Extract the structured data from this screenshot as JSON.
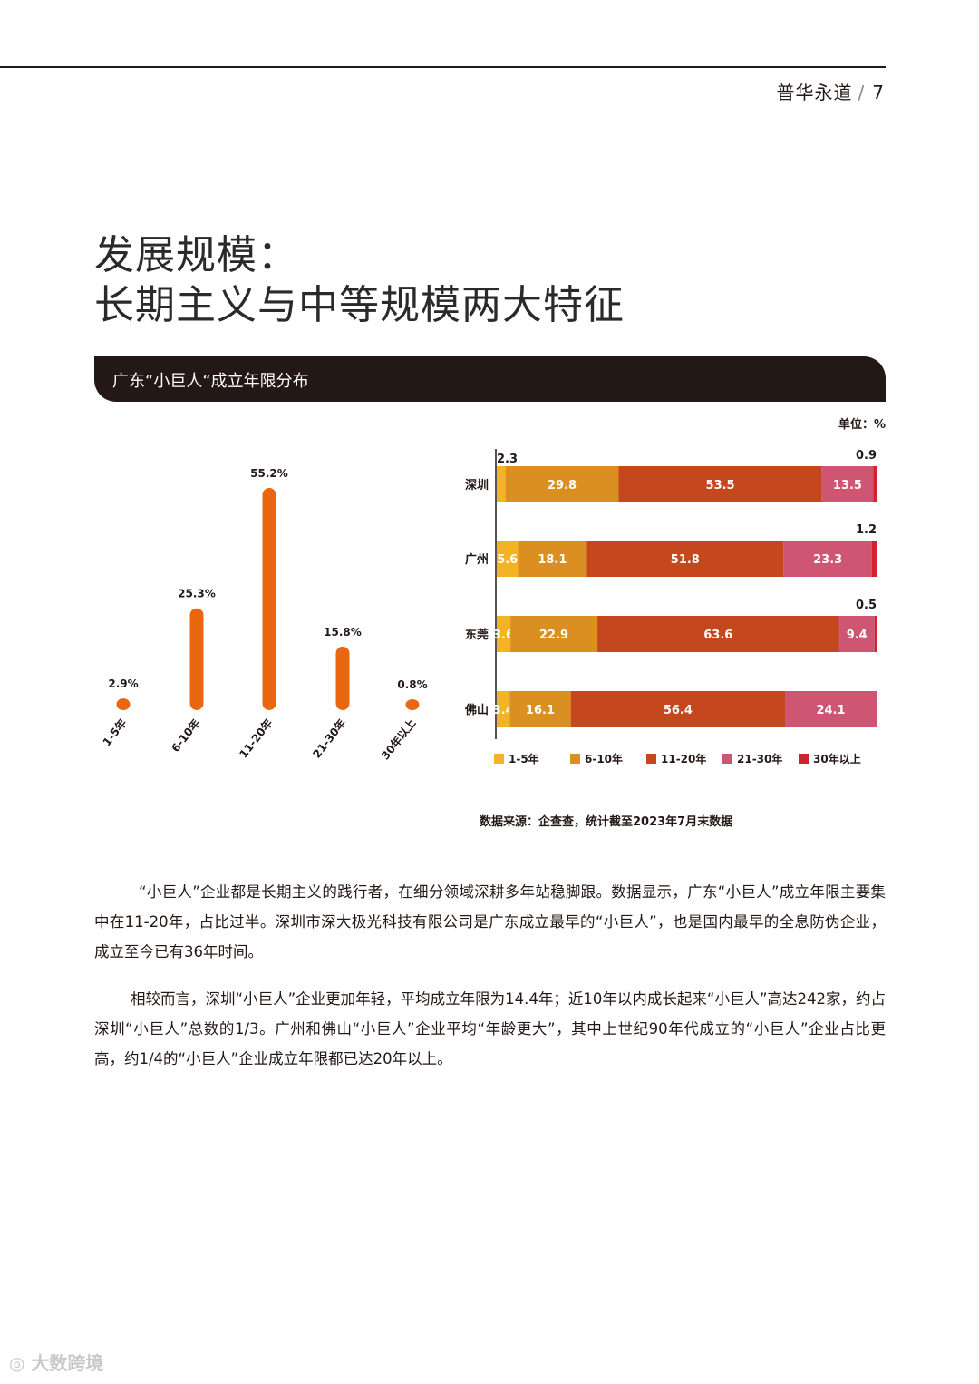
{
  "header": {
    "brand": "普华永道",
    "separator": "/",
    "page_number": "7"
  },
  "title": {
    "line1": "发展规模：",
    "line2": "长期主义与中等规模两大特征"
  },
  "banner": {
    "text": "广东“小巨人“成立年限分布"
  },
  "unit_label": "单位：%",
  "colors": {
    "orange": "#e8670f",
    "c_1_5": "#f2b324",
    "c_6_10": "#db8f21",
    "c_11_20": "#c5471e",
    "c_21_30": "#cf5672",
    "c_30plus": "#d0232b",
    "banner": "#231815"
  },
  "chart_data": [
    {
      "type": "bar",
      "categories": [
        "1-5年",
        "6-10年",
        "11-20年",
        "21-30年",
        "30年以上"
      ],
      "values": [
        2.9,
        25.3,
        55.2,
        15.8,
        0.8
      ],
      "value_labels": [
        "2.9%",
        "25.3%",
        "55.2%",
        "15.8%",
        "0.8%"
      ],
      "title": "",
      "xlabel": "",
      "ylabel": ""
    },
    {
      "type": "bar",
      "orientation": "horizontal",
      "stacked": true,
      "categories": [
        "深圳",
        "广州",
        "东莞",
        "佛山"
      ],
      "series": [
        {
          "name": "1-5年",
          "values": [
            2.3,
            5.6,
            3.6,
            3.4
          ]
        },
        {
          "name": "6-10年",
          "values": [
            29.8,
            18.1,
            22.9,
            16.1
          ]
        },
        {
          "name": "11-20年",
          "values": [
            53.5,
            51.8,
            63.6,
            56.4
          ]
        },
        {
          "name": "21-30年",
          "values": [
            13.5,
            23.3,
            9.4,
            24.1
          ]
        },
        {
          "name": "30年以上",
          "values": [
            0.9,
            1.2,
            0.5,
            0
          ]
        }
      ],
      "legend_position": "bottom",
      "xlim": [
        0,
        100
      ]
    }
  ],
  "source": "数据来源：企查查，统计截至2023年7月末数据",
  "paragraphs": [
    "“小巨人”企业都是长期主义的践行者，在细分领域深耕多年站稳脚跟。数据显示，广东“小巨人”成立年限主要集中在11-20年，占比过半。深圳市深大极光科技有限公司是广东成立最早的“小巨人”，也是国内最早的全息防伪企业，成立至今已有36年时间。",
    "相较而言，深圳“小巨人”企业更加年轻，平均成立年限为14.4年；近10年以内成长起来“小巨人”高达242家，约占深圳“小巨人”总数的1/3。广州和佛山“小巨人”企业平均“年龄更大”，其中上世纪90年代成立的“小巨人”企业占比更高，约1/4的“小巨人”企业成立年限都已达20年以上。"
  ],
  "watermark": "大数跨境"
}
